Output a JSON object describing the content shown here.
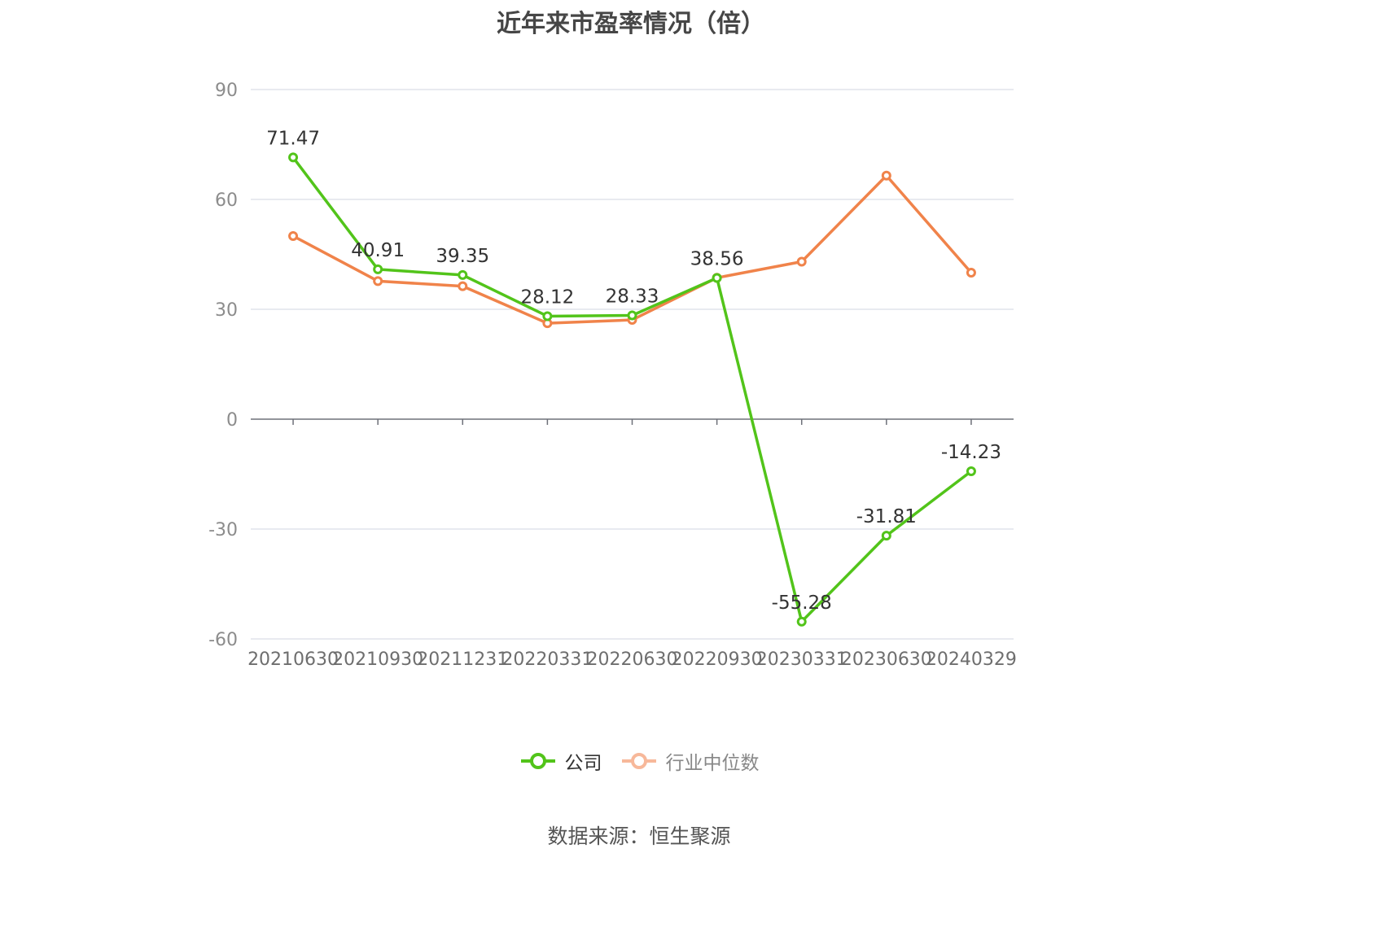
{
  "chart_data": {
    "type": "line",
    "title": "近年来市盈率情况（倍）",
    "categories": [
      "20210630",
      "20210930",
      "20211231",
      "20220331",
      "20220630",
      "20220930",
      "20230331",
      "20230630",
      "20240329"
    ],
    "series": [
      {
        "name": "公司",
        "color": "#52c41a",
        "values": [
          71.47,
          40.91,
          39.35,
          28.12,
          28.33,
          38.56,
          -55.28,
          -31.81,
          -14.23
        ],
        "labels": [
          "71.47",
          "40.91",
          "39.35",
          "28.12",
          "28.33",
          "38.56",
          "-55.28",
          "-31.81",
          "-14.23"
        ]
      },
      {
        "name": "行业中位数",
        "color": "#f0834a",
        "values": [
          50.0,
          37.7,
          36.3,
          26.2,
          27.1,
          38.6,
          43.0,
          66.5,
          40.0
        ]
      }
    ],
    "ylim": [
      -60,
      90
    ],
    "yticks": [
      -60,
      -30,
      0,
      30,
      60,
      90
    ],
    "grid": true,
    "legend": "bottom-center",
    "source": "数据来源：恒生聚源"
  }
}
